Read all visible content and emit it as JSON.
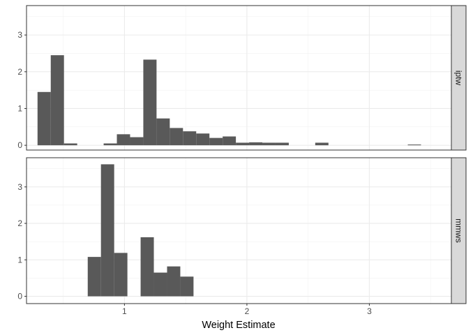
{
  "chart_data": {
    "type": "bar",
    "xlabel": "Weight Estimate",
    "ylabel": "",
    "xlim": [
      0.2,
      3.67
    ],
    "x_ticks": [
      1,
      2,
      3
    ],
    "x_tick_labels": [
      "1",
      "2",
      "3"
    ],
    "grid": true,
    "bar_color": "#595959",
    "panels": [
      {
        "name": "iptw",
        "ylim": [
          -0.13,
          3.8
        ],
        "y_ticks": [
          0,
          1,
          2,
          3
        ],
        "y_tick_labels": [
          "0",
          "1",
          "2",
          "3"
        ],
        "bin_width": 0.108,
        "bins": [
          {
            "x0": 0.29,
            "value": 1.45
          },
          {
            "x0": 0.398,
            "value": 2.45
          },
          {
            "x0": 0.506,
            "value": 0.05
          },
          {
            "x0": 0.83,
            "value": 0.05
          },
          {
            "x0": 0.938,
            "value": 0.3
          },
          {
            "x0": 1.046,
            "value": 0.22
          },
          {
            "x0": 1.154,
            "value": 2.33
          },
          {
            "x0": 1.262,
            "value": 0.73
          },
          {
            "x0": 1.37,
            "value": 0.47
          },
          {
            "x0": 1.478,
            "value": 0.38
          },
          {
            "x0": 1.586,
            "value": 0.32
          },
          {
            "x0": 1.694,
            "value": 0.2
          },
          {
            "x0": 1.802,
            "value": 0.24
          },
          {
            "x0": 1.91,
            "value": 0.07
          },
          {
            "x0": 2.018,
            "value": 0.08
          },
          {
            "x0": 2.126,
            "value": 0.07
          },
          {
            "x0": 2.234,
            "value": 0.07
          },
          {
            "x0": 2.558,
            "value": 0.07
          },
          {
            "x0": 3.314,
            "value": 0.02
          }
        ]
      },
      {
        "name": "mmws",
        "ylim": [
          -0.2,
          3.8
        ],
        "y_ticks": [
          0,
          1,
          2,
          3
        ],
        "y_tick_labels": [
          "0",
          "1",
          "2",
          "3"
        ],
        "bin_width": 0.108,
        "bins": [
          {
            "x0": 0.7,
            "value": 1.08
          },
          {
            "x0": 0.808,
            "value": 3.62
          },
          {
            "x0": 0.916,
            "value": 1.19
          },
          {
            "x0": 1.024,
            "value": 0.0
          },
          {
            "x0": 1.132,
            "value": 1.62
          },
          {
            "x0": 1.24,
            "value": 0.65
          },
          {
            "x0": 1.348,
            "value": 0.82
          },
          {
            "x0": 1.456,
            "value": 0.54
          }
        ]
      }
    ]
  }
}
